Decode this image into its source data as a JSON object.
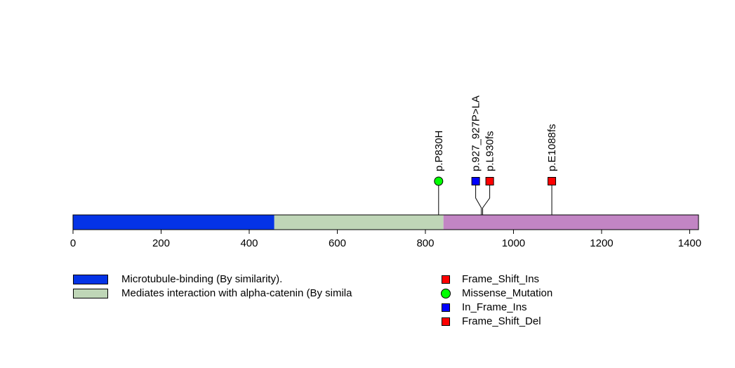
{
  "chart_data": {
    "type": "lollipop",
    "protein_length": 1420,
    "xlim": [
      0,
      1420
    ],
    "x_ticks": [
      0,
      200,
      400,
      600,
      800,
      1000,
      1200,
      1400
    ],
    "domains": [
      {
        "name": "Microtubule-binding (By similarity).",
        "start": 1,
        "end": 457,
        "color": "#0433e6"
      },
      {
        "name": "Mediates interaction with alpha-catenin (By simila",
        "start": 457,
        "end": 841,
        "color": "#bfd6b7"
      },
      {
        "name": "",
        "start": 841,
        "end": 1420,
        "color": "#c285c4"
      }
    ],
    "mutations": [
      {
        "label": "p.P830H",
        "position": 830,
        "type": "Missense_Mutation"
      },
      {
        "label": "p.927_927P>LA",
        "position": 927,
        "type": "In_Frame_Ins"
      },
      {
        "label": "p.L930fs",
        "position": 930,
        "type": "Frame_Shift_Del"
      },
      {
        "label": "p.E1088fs",
        "position": 1087,
        "type": "Frame_Shift_Del"
      }
    ],
    "mutation_types": [
      {
        "name": "Frame_Shift_Ins",
        "color": "#ff0000",
        "shape": "square"
      },
      {
        "name": "Missense_Mutation",
        "color": "#00ff00",
        "shape": "circle"
      },
      {
        "name": "In_Frame_Ins",
        "color": "#0000ff",
        "shape": "square"
      },
      {
        "name": "Frame_Shift_Del",
        "color": "#ff0000",
        "shape": "square"
      }
    ]
  }
}
